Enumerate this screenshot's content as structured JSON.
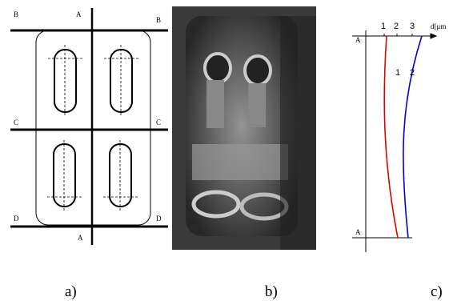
{
  "panel_a": {
    "labels": [
      "B",
      "A",
      "B",
      "C",
      "C",
      "D",
      "D",
      "A"
    ],
    "caption": "a)"
  },
  "panel_b": {
    "caption": "b)"
  },
  "panel_c": {
    "axis_ticks": [
      "1",
      "2",
      "3"
    ],
    "axis_label": "d[μm",
    "section_top": "A",
    "section_bottom": "A",
    "curve_labels": [
      "1",
      "2"
    ],
    "caption": "c)"
  }
}
